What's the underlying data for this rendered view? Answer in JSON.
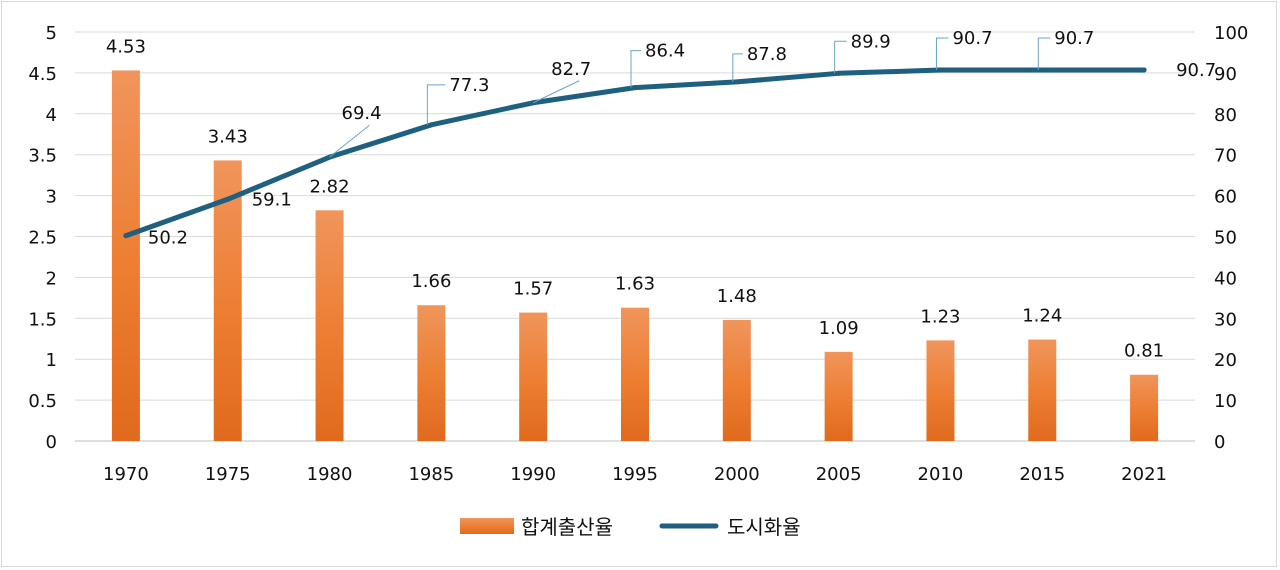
{
  "chart_data": {
    "type": "bar",
    "title": "",
    "categories": [
      "1970",
      "1975",
      "1980",
      "1985",
      "1990",
      "1995",
      "2000",
      "2005",
      "2010",
      "2015",
      "2021"
    ],
    "series": [
      {
        "name": "합계출산율",
        "type": "bar",
        "axis": "left",
        "color": "#ed7d31",
        "values": [
          4.53,
          3.43,
          2.82,
          1.66,
          1.57,
          1.63,
          1.48,
          1.09,
          1.23,
          1.24,
          0.81
        ],
        "labels": [
          "4.53",
          "3.43",
          "2.82",
          "1.66",
          "1.57",
          "1.63",
          "1.48",
          "1.09",
          "1.23",
          "1.24",
          "0.81"
        ]
      },
      {
        "name": "도시화율",
        "type": "line",
        "axis": "right",
        "color": "#1f5f7f",
        "values": [
          50.2,
          59.1,
          69.4,
          77.3,
          82.7,
          86.4,
          87.8,
          89.9,
          90.7,
          90.7,
          90.7
        ],
        "labels": [
          "50.2",
          "59.1",
          "69.4",
          "77.3",
          "82.7",
          "86.4",
          "87.8",
          "89.9",
          "90.7",
          "90.7",
          "90.7"
        ]
      }
    ],
    "y_left": {
      "min": 0,
      "max": 5,
      "ticks": [
        0,
        0.5,
        1,
        1.5,
        2,
        2.5,
        3,
        3.5,
        4,
        4.5,
        5
      ],
      "tick_labels": [
        "0",
        "0.5",
        "1",
        "1.5",
        "2",
        "2.5",
        "3",
        "3.5",
        "4",
        "4.5",
        "5"
      ]
    },
    "y_right": {
      "min": 0,
      "max": 100,
      "ticks": [
        0,
        10,
        20,
        30,
        40,
        50,
        60,
        70,
        80,
        90,
        100
      ],
      "tick_labels": [
        "0",
        "10",
        "20",
        "30",
        "40",
        "50",
        "60",
        "70",
        "80",
        "90",
        "100"
      ]
    },
    "grid": true,
    "legend": "bottom-center"
  }
}
